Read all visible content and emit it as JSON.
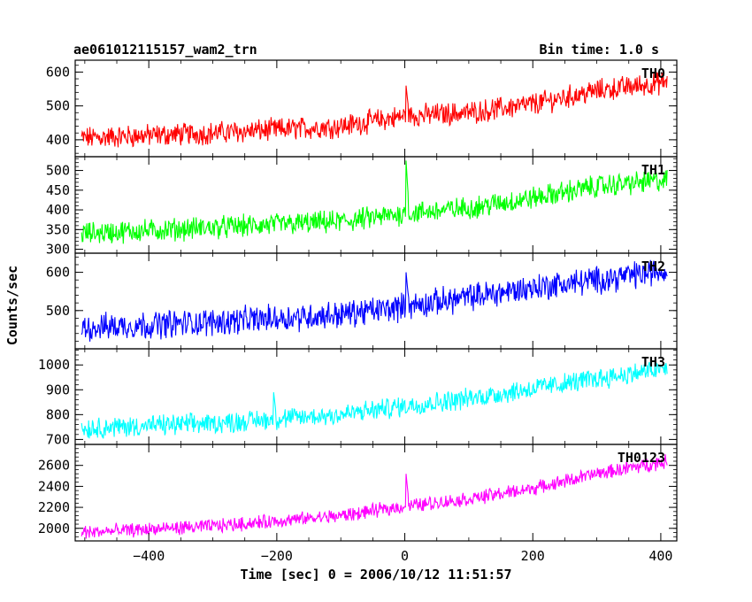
{
  "header": {
    "title": "ae061012115157_wam2_trn",
    "bin_time": "Bin time: 1.0 s"
  },
  "chart_data": {
    "type": "line",
    "xlabel": "Time [sec] 0 = 2006/10/12 11:51:57",
    "ylabel": "Counts/sec",
    "xlim": [
      -515,
      425
    ],
    "x_ticks": [
      -400,
      -200,
      0,
      200,
      400
    ],
    "x_tick_labels": [
      "−400",
      "−200",
      "0",
      "200",
      "400"
    ],
    "x_range": [
      -505,
      410
    ],
    "panels": [
      {
        "name": "TH0",
        "color": "#ff0000",
        "ylim": [
          350,
          635
        ],
        "y_ticks": [
          400,
          500,
          600
        ],
        "y_tick_labels": [
          "400",
          "500",
          "600"
        ],
        "trend": [
          [
            -505,
            405
          ],
          [
            -300,
            420
          ],
          [
            -100,
            440
          ],
          [
            0,
            470
          ],
          [
            100,
            480
          ],
          [
            200,
            505
          ],
          [
            300,
            545
          ],
          [
            410,
            570
          ]
        ],
        "noise": 28,
        "features": [
          {
            "x": 2,
            "value": 560
          }
        ]
      },
      {
        "name": "TH1",
        "color": "#00ff00",
        "ylim": [
          290,
          535
        ],
        "y_ticks": [
          300,
          350,
          400,
          450,
          500
        ],
        "y_tick_labels": [
          "300",
          "350",
          "400",
          "450",
          "500"
        ],
        "trend": [
          [
            -505,
            340
          ],
          [
            -300,
            355
          ],
          [
            -100,
            370
          ],
          [
            0,
            390
          ],
          [
            100,
            405
          ],
          [
            200,
            430
          ],
          [
            300,
            460
          ],
          [
            410,
            475
          ]
        ],
        "noise": 24,
        "features": [
          {
            "x": 2,
            "value": 525
          }
        ]
      },
      {
        "name": "TH2",
        "color": "#0000ff",
        "ylim": [
          400,
          650
        ],
        "y_ticks": [
          500,
          600
        ],
        "y_tick_labels": [
          "500",
          "600"
        ],
        "trend": [
          [
            -505,
            455
          ],
          [
            -300,
            470
          ],
          [
            -100,
            490
          ],
          [
            0,
            510
          ],
          [
            100,
            535
          ],
          [
            200,
            560
          ],
          [
            300,
            580
          ],
          [
            410,
            605
          ]
        ],
        "noise": 30,
        "features": [
          {
            "x": 2,
            "value": 600
          }
        ]
      },
      {
        "name": "TH3",
        "color": "#00ffff",
        "ylim": [
          680,
          1065
        ],
        "y_ticks": [
          700,
          800,
          900,
          1000
        ],
        "y_tick_labels": [
          "700",
          "800",
          "900",
          "1000"
        ],
        "trend": [
          [
            -505,
            745
          ],
          [
            -300,
            765
          ],
          [
            -100,
            800
          ],
          [
            0,
            835
          ],
          [
            100,
            865
          ],
          [
            200,
            905
          ],
          [
            300,
            945
          ],
          [
            410,
            985
          ]
        ],
        "noise": 35,
        "features": [
          {
            "x": -205,
            "value": 890
          }
        ]
      },
      {
        "name": "TH0123",
        "color": "#ff00ff",
        "ylim": [
          1880,
          2800
        ],
        "y_ticks": [
          2000,
          2200,
          2400,
          2600
        ],
        "y_tick_labels": [
          "2000",
          "2200",
          "2400",
          "2600"
        ],
        "trend": [
          [
            -505,
            1960
          ],
          [
            -300,
            2020
          ],
          [
            -100,
            2120
          ],
          [
            0,
            2210
          ],
          [
            100,
            2280
          ],
          [
            200,
            2380
          ],
          [
            300,
            2520
          ],
          [
            410,
            2640
          ]
        ],
        "noise": 55,
        "features": [
          {
            "x": 2,
            "value": 2520
          }
        ]
      }
    ]
  }
}
